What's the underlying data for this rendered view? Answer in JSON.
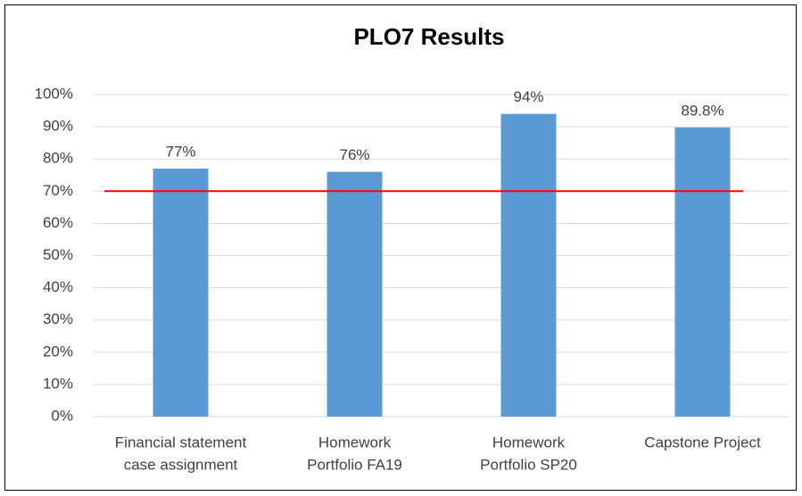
{
  "chart_data": {
    "type": "bar",
    "title": "PLO7 Results",
    "categories": [
      [
        "Financial statement",
        "case assignment"
      ],
      [
        "Homework",
        "Portfolio FA19"
      ],
      [
        "Homework",
        "Portfolio SP20"
      ],
      [
        "Capstone Project"
      ]
    ],
    "values": [
      77,
      76,
      94,
      89.8
    ],
    "value_labels": [
      "77%",
      "76%",
      "94%",
      "89.8%"
    ],
    "color": "#5b9bd5",
    "ylim": [
      0,
      100
    ],
    "yticks": [
      {
        "value": 0,
        "label": "0%"
      },
      {
        "value": 10,
        "label": "10%"
      },
      {
        "value": 20,
        "label": "20%"
      },
      {
        "value": 30,
        "label": "30%"
      },
      {
        "value": 40,
        "label": "40%"
      },
      {
        "value": 50,
        "label": "50%"
      },
      {
        "value": 60,
        "label": "60%"
      },
      {
        "value": 70,
        "label": "70%"
      },
      {
        "value": 80,
        "label": "80%"
      },
      {
        "value": 90,
        "label": "90%"
      },
      {
        "value": 100,
        "label": "100%"
      }
    ],
    "grid": true,
    "target_line": {
      "value": 70,
      "color": "#ff0000"
    }
  }
}
